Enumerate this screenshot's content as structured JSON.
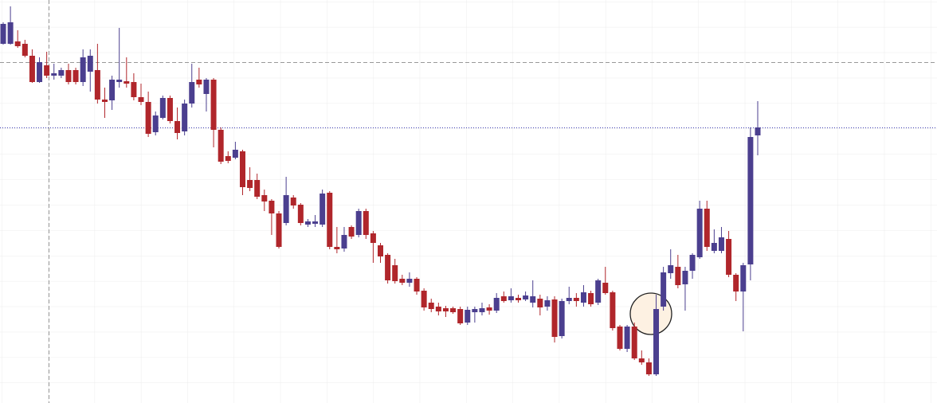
{
  "chart_data": {
    "type": "candlestick",
    "categories": [
      null,
      null,
      null,
      null,
      null,
      null,
      null,
      null,
      null,
      null,
      null,
      null,
      null,
      null,
      null,
      null,
      null,
      null,
      null,
      null,
      null,
      null,
      null,
      null,
      null,
      null,
      null,
      null,
      null,
      null,
      null,
      null,
      null,
      null,
      null,
      null,
      null,
      null,
      null,
      null,
      null,
      null,
      null,
      null,
      null,
      null,
      null,
      null,
      null,
      null,
      null,
      null,
      null,
      null,
      null,
      null,
      null,
      null,
      null,
      null,
      null,
      null,
      null,
      null,
      null,
      null,
      null,
      null,
      null,
      null,
      null,
      null,
      null,
      null,
      null,
      null,
      null,
      null,
      null,
      null,
      null,
      null,
      null,
      null,
      null,
      null,
      null,
      null,
      null,
      null,
      null,
      null,
      null,
      null,
      null,
      null,
      null,
      null,
      null,
      null,
      null,
      null,
      null,
      null,
      null
    ],
    "open": [
      451,
      451,
      454,
      451,
      436,
      403,
      424,
      411,
      411,
      418,
      418,
      403,
      416,
      418,
      381,
      380,
      403,
      404,
      403,
      384,
      378,
      340,
      358,
      383,
      354,
      341,
      376,
      406,
      388,
      406,
      343,
      310,
      308,
      316,
      280,
      280,
      261,
      254,
      238,
      226,
      258,
      249,
      224,
      225,
      224,
      264,
      196,
      194,
      221,
      211,
      241,
      213,
      198,
      186,
      173,
      156,
      151,
      156,
      141,
      126,
      121,
      119,
      119,
      118,
      101,
      114,
      114,
      120,
      116,
      134,
      129,
      132,
      130,
      126,
      131,
      121,
      130,
      84,
      128,
      132,
      126,
      138,
      126,
      151,
      139,
      96,
      68,
      96,
      56,
      51,
      36,
      121,
      163,
      171,
      149,
      166,
      183,
      244,
      191,
      191,
      206,
      161,
      140,
      174,
      336
    ],
    "high": [
      478,
      498,
      468,
      456,
      444,
      434,
      441,
      426,
      421,
      426,
      421,
      444,
      444,
      451,
      396,
      411,
      471,
      434,
      414,
      401,
      391,
      366,
      386,
      386,
      371,
      381,
      426,
      421,
      408,
      408,
      346,
      316,
      328,
      318,
      296,
      288,
      268,
      256,
      241,
      284,
      261,
      251,
      231,
      236,
      268,
      266,
      221,
      221,
      223,
      244,
      244,
      216,
      201,
      188,
      181,
      161,
      164,
      158,
      144,
      131,
      126,
      122,
      121,
      121,
      121,
      121,
      126,
      124,
      138,
      140,
      144,
      136,
      140,
      154,
      136,
      134,
      134,
      131,
      146,
      138,
      148,
      141,
      156,
      171,
      141,
      98,
      98,
      101,
      66,
      56,
      136,
      171,
      193,
      186,
      171,
      188,
      254,
      254,
      218,
      221,
      216,
      163,
      176,
      346,
      379
    ],
    "low": [
      450,
      450,
      446,
      434,
      402,
      402,
      408,
      406,
      408,
      400,
      400,
      398,
      391,
      376,
      358,
      368,
      396,
      396,
      380,
      374,
      334,
      336,
      356,
      351,
      331,
      336,
      371,
      396,
      366,
      321,
      300,
      301,
      306,
      261,
      266,
      256,
      241,
      211,
      194,
      223,
      244,
      223,
      221,
      221,
      221,
      193,
      188,
      190,
      206,
      208,
      206,
      176,
      176,
      150,
      150,
      148,
      146,
      136,
      116,
      114,
      110,
      108,
      112,
      98,
      98,
      101,
      110,
      111,
      113,
      126,
      126,
      126,
      128,
      120,
      110,
      116,
      76,
      81,
      124,
      121,
      121,
      121,
      123,
      136,
      91,
      66,
      64,
      54,
      48,
      34,
      34,
      116,
      156,
      144,
      116,
      156,
      181,
      191,
      188,
      188,
      158,
      128,
      90,
      154,
      311
    ],
    "close": [
      476,
      478,
      448,
      436,
      403,
      428,
      411,
      414,
      418,
      403,
      403,
      434,
      436,
      381,
      378,
      406,
      406,
      401,
      384,
      378,
      338,
      361,
      383,
      354,
      339,
      376,
      403,
      400,
      406,
      343,
      303,
      304,
      318,
      271,
      270,
      259,
      253,
      238,
      196,
      261,
      248,
      226,
      228,
      228,
      263,
      196,
      193,
      211,
      209,
      241,
      211,
      201,
      184,
      154,
      153,
      151,
      156,
      140,
      120,
      118,
      115,
      115,
      114,
      100,
      117,
      118,
      119,
      116,
      132,
      128,
      134,
      129,
      135,
      134,
      120,
      129,
      83,
      128,
      132,
      128,
      139,
      124,
      154,
      138,
      94,
      68,
      96,
      56,
      51,
      36,
      118,
      164,
      173,
      148,
      166,
      186,
      244,
      196,
      201,
      208,
      161,
      140,
      173,
      334,
      346
    ],
    "ylim": [
      0,
      506
    ],
    "up_color": "#4b3f8f",
    "down_color": "#b0262b"
  }
}
